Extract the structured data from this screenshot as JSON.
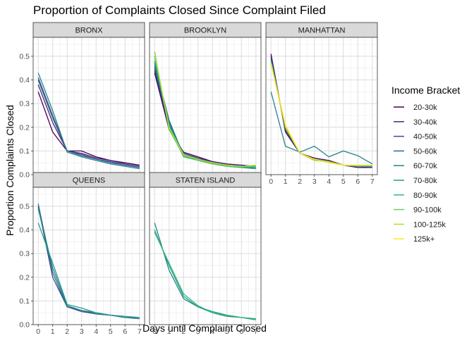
{
  "chart_data": {
    "type": "line",
    "title": "Proportion of Complaints Closed Since Complaint Filed",
    "xlabel": "Days until Complaint Closed",
    "ylabel": "Proportion Complaints Closed",
    "x": [
      0,
      1,
      2,
      3,
      4,
      5,
      6,
      7
    ],
    "x_ticks": [
      "0",
      "1",
      "2",
      "3",
      "4",
      "5",
      "6",
      "7"
    ],
    "y_ticks": [
      "0.0",
      "0.1",
      "0.2",
      "0.3",
      "0.4",
      "0.5"
    ],
    "xlim": [
      -0.35,
      7.35
    ],
    "ylim": [
      0,
      0.58
    ],
    "grid": true,
    "legend": {
      "title": "Income Bracket",
      "position": "right",
      "entries": [
        {
          "label": "20-30k",
          "color": "#440154"
        },
        {
          "label": "30-40k",
          "color": "#482878"
        },
        {
          "label": "40-50k",
          "color": "#3E4A89"
        },
        {
          "label": "50-60k",
          "color": "#31688E"
        },
        {
          "label": "60-70k",
          "color": "#26828E"
        },
        {
          "label": "70-80k",
          "color": "#1F9E89"
        },
        {
          "label": "80-90k",
          "color": "#35B779"
        },
        {
          "label": "90-100k",
          "color": "#6DCD59"
        },
        {
          "label": "100-125k",
          "color": "#B4DE2C"
        },
        {
          "label": "125k+",
          "color": "#FDE725"
        }
      ]
    },
    "panels": [
      {
        "name": "BRONX",
        "series": [
          {
            "bracket": "20-30k",
            "values": [
              0.35,
              0.18,
              0.1,
              0.1,
              0.075,
              0.06,
              0.05,
              0.04
            ]
          },
          {
            "bracket": "30-40k",
            "values": [
              0.38,
              0.22,
              0.1,
              0.09,
              0.07,
              0.06,
              0.045,
              0.035
            ]
          },
          {
            "bracket": "40-50k",
            "values": [
              0.4,
              0.24,
              0.1,
              0.085,
              0.065,
              0.055,
              0.04,
              0.03
            ]
          },
          {
            "bracket": "50-60k",
            "values": [
              0.41,
              0.25,
              0.1,
              0.08,
              0.065,
              0.05,
              0.04,
              0.03
            ]
          },
          {
            "bracket": "60-70k",
            "values": [
              0.43,
              0.27,
              0.095,
              0.075,
              0.06,
              0.045,
              0.035,
              0.025
            ]
          }
        ]
      },
      {
        "name": "BROOKLYN",
        "series": [
          {
            "bracket": "20-30k",
            "values": [
              0.43,
              0.19,
              0.095,
              0.075,
              0.055,
              0.045,
              0.04,
              0.035
            ]
          },
          {
            "bracket": "30-40k",
            "values": [
              0.44,
              0.2,
              0.09,
              0.07,
              0.055,
              0.045,
              0.04,
              0.035
            ]
          },
          {
            "bracket": "40-50k",
            "values": [
              0.45,
              0.21,
              0.09,
              0.07,
              0.05,
              0.04,
              0.035,
              0.03
            ]
          },
          {
            "bracket": "50-60k",
            "values": [
              0.46,
              0.22,
              0.085,
              0.065,
              0.05,
              0.04,
              0.035,
              0.03
            ]
          },
          {
            "bracket": "60-70k",
            "values": [
              0.47,
              0.23,
              0.08,
              0.065,
              0.045,
              0.04,
              0.03,
              0.025
            ]
          },
          {
            "bracket": "70-80k",
            "values": [
              0.48,
              0.21,
              0.08,
              0.06,
              0.045,
              0.035,
              0.03,
              0.03
            ]
          },
          {
            "bracket": "80-90k",
            "values": [
              0.5,
              0.2,
              0.075,
              0.06,
              0.045,
              0.035,
              0.03,
              0.035
            ]
          },
          {
            "bracket": "90-100k",
            "values": [
              0.52,
              0.19,
              0.08,
              0.06,
              0.045,
              0.035,
              0.035,
              0.035
            ]
          },
          {
            "bracket": "100-125k",
            "values": [
              0.51,
              0.2,
              0.085,
              0.065,
              0.05,
              0.04,
              0.035,
              0.04
            ]
          }
        ]
      },
      {
        "name": "MANHATTAN",
        "series": [
          {
            "bracket": "20-30k",
            "values": [
              0.51,
              0.18,
              0.09,
              0.07,
              0.06,
              0.04,
              0.03,
              0.03
            ]
          },
          {
            "bracket": "30-40k",
            "values": [
              0.5,
              0.19,
              0.09,
              0.065,
              0.055,
              0.04,
              0.035,
              0.03
            ]
          },
          {
            "bracket": "40-50k",
            "values": [
              0.49,
              0.19,
              0.09,
              0.06,
              0.055,
              0.04,
              0.035,
              0.035
            ]
          },
          {
            "bracket": "60-70k",
            "values": [
              0.35,
              0.12,
              0.095,
              0.12,
              0.075,
              0.1,
              0.08,
              0.045
            ]
          },
          {
            "bracket": "80-90k",
            "values": [
              0.48,
              0.2,
              0.09,
              0.065,
              0.055,
              0.04,
              0.035,
              0.035
            ]
          },
          {
            "bracket": "100-125k",
            "values": [
              0.47,
              0.2,
              0.09,
              0.06,
              0.055,
              0.04,
              0.04,
              0.04
            ]
          },
          {
            "bracket": "125k+",
            "values": [
              0.47,
              0.21,
              0.09,
              0.065,
              0.05,
              0.04,
              0.04,
              0.04
            ]
          }
        ]
      },
      {
        "name": "QUEENS",
        "series": [
          {
            "bracket": "40-50k",
            "values": [
              0.5,
              0.2,
              0.075,
              0.055,
              0.045,
              0.04,
              0.03,
              0.03
            ]
          },
          {
            "bracket": "50-60k",
            "values": [
              0.51,
              0.22,
              0.075,
              0.06,
              0.045,
              0.04,
              0.03,
              0.025
            ]
          },
          {
            "bracket": "60-70k",
            "values": [
              0.49,
              0.24,
              0.08,
              0.06,
              0.05,
              0.04,
              0.03,
              0.03
            ]
          },
          {
            "bracket": "70-80k",
            "values": [
              0.43,
              0.26,
              0.085,
              0.07,
              0.05,
              0.04,
              0.035,
              0.03
            ]
          }
        ]
      },
      {
        "name": "STATEN ISLAND",
        "series": [
          {
            "bracket": "60-70k",
            "values": [
              0.43,
              0.23,
              0.11,
              0.075,
              0.05,
              0.035,
              0.03,
              0.025
            ]
          },
          {
            "bracket": "70-80k",
            "values": [
              0.4,
              0.25,
              0.12,
              0.075,
              0.055,
              0.04,
              0.03,
              0.02
            ]
          },
          {
            "bracket": "80-90k",
            "values": [
              0.39,
              0.26,
              0.13,
              0.08,
              0.05,
              0.04,
              0.03,
              0.025
            ]
          }
        ]
      }
    ]
  }
}
